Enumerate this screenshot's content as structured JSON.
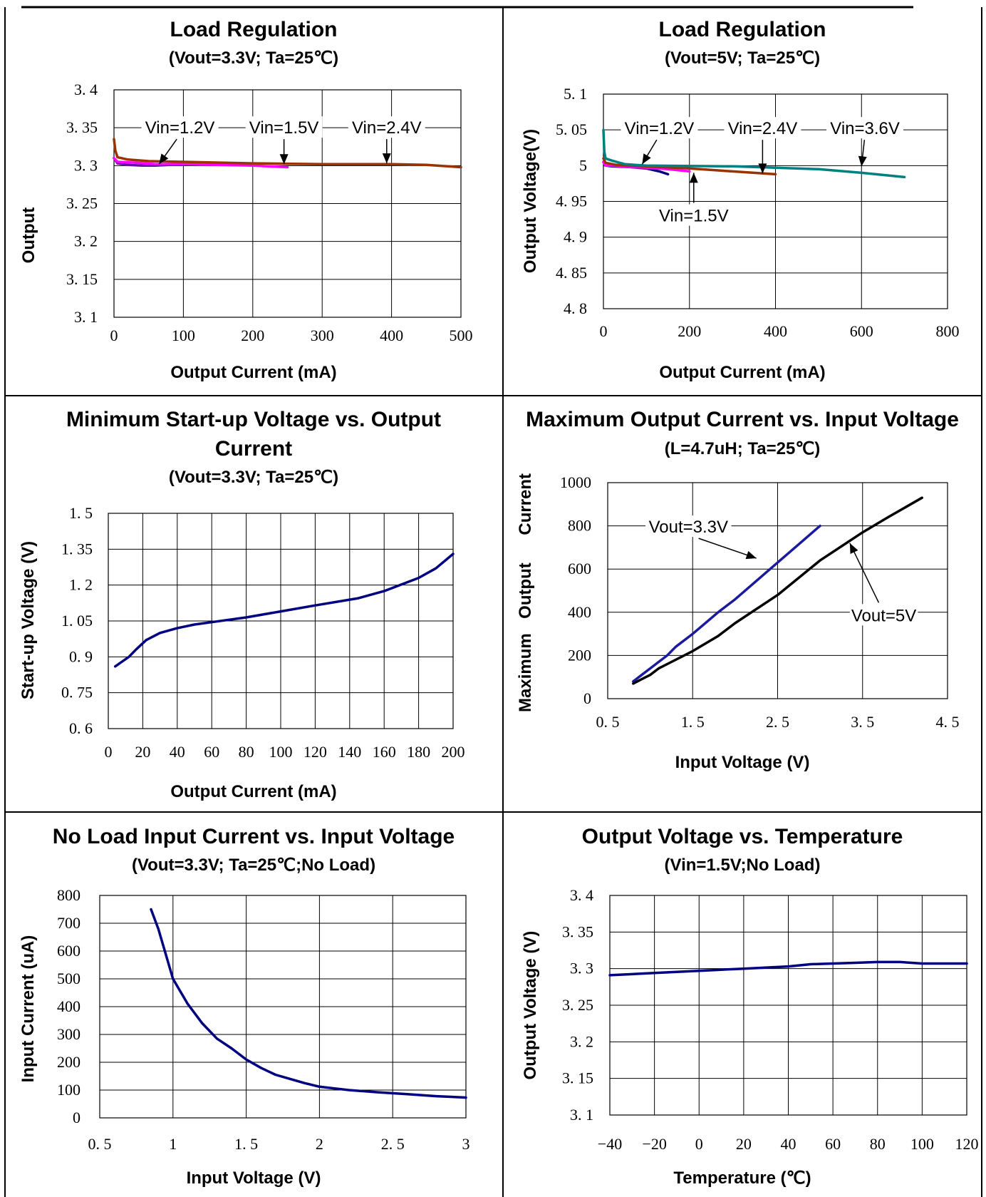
{
  "colors": {
    "navy": "#000080",
    "brown": "#993300",
    "magenta": "#ff00ff",
    "teal": "#008080",
    "black": "#000000",
    "blue": "#1a1a9c"
  },
  "chart_data": [
    {
      "type": "line",
      "title": "Load Regulation",
      "subtitle": "(Vout=3.3V; Ta=25℃)",
      "xlabel": "Output Current (mA)",
      "ylabel": "Output",
      "xlim": [
        0,
        500
      ],
      "ylim": [
        3.1,
        3.4
      ],
      "xticks": [
        "0",
        "100",
        "200",
        "300",
        "400",
        "500"
      ],
      "yticks": [
        "3. 4",
        "3. 35",
        "3. 3",
        "3. 25",
        "3. 2",
        "3. 15",
        "3. 1"
      ],
      "series": [
        {
          "name": "Vin=1.2V",
          "color": "#6a0dad",
          "x": [
            0,
            5,
            20,
            40,
            60,
            80,
            100
          ],
          "y": [
            3.31,
            3.303,
            3.301,
            3.3,
            3.3,
            3.301,
            3.301
          ]
        },
        {
          "name": "Vin=1.5V",
          "color": "#ff00ff",
          "x": [
            0,
            5,
            30,
            60,
            100,
            150,
            200,
            250
          ],
          "y": [
            3.31,
            3.305,
            3.304,
            3.302,
            3.302,
            3.301,
            3.3,
            3.298
          ]
        },
        {
          "name": "Vin=2.4V",
          "color": "#993300",
          "x": [
            0,
            2,
            5,
            20,
            50,
            100,
            200,
            300,
            400,
            450,
            500
          ],
          "y": [
            3.335,
            3.32,
            3.311,
            3.308,
            3.306,
            3.305,
            3.303,
            3.302,
            3.302,
            3.301,
            3.298
          ]
        }
      ],
      "annotations": [
        {
          "text": "Vin=1.2V",
          "x": 95,
          "y": 3.35,
          "ax": 65,
          "ay": 3.302
        },
        {
          "text": "Vin=1.5V",
          "x": 245,
          "y": 3.35,
          "ax": 245,
          "ay": 3.302
        },
        {
          "text": "Vin=2.4V",
          "x": 393,
          "y": 3.35,
          "ax": 393,
          "ay": 3.303
        }
      ]
    },
    {
      "type": "line",
      "title": "Load Regulation",
      "subtitle": "(Vout=5V; Ta=25℃)",
      "xlabel": "Output Current (mA)",
      "ylabel": "Output Voltage(V)",
      "xlim": [
        0,
        800
      ],
      "ylim": [
        4.8,
        5.1
      ],
      "xticks": [
        "0",
        "200",
        "400",
        "600",
        "800"
      ],
      "yticks": [
        "5. 1",
        "5. 05",
        "5",
        "4. 95",
        "4. 9",
        "4. 85",
        "4. 8"
      ],
      "series": [
        {
          "name": "Vin=1.2V",
          "color": "#000080",
          "x": [
            0,
            5,
            20,
            60,
            100,
            130,
            150
          ],
          "y": [
            5.005,
            5.0,
            4.999,
            4.998,
            4.996,
            4.992,
            4.988
          ]
        },
        {
          "name": "Vin=1.5V",
          "color": "#ff00ff",
          "x": [
            0,
            5,
            20,
            60,
            100,
            150,
            200
          ],
          "y": [
            5.005,
            5.0,
            5.0,
            4.998,
            4.997,
            4.995,
            4.992
          ]
        },
        {
          "name": "Vin=2.4V",
          "color": "#993300",
          "x": [
            0,
            5,
            30,
            100,
            200,
            300,
            400
          ],
          "y": [
            5.01,
            5.004,
            5.001,
            4.999,
            4.996,
            4.992,
            4.988
          ]
        },
        {
          "name": "Vin=3.6V",
          "color": "#008080",
          "x": [
            0,
            2,
            5,
            20,
            50,
            100,
            300,
            500,
            600,
            700
          ],
          "y": [
            5.05,
            5.02,
            5.01,
            5.007,
            5.002,
            5.0,
            4.999,
            4.995,
            4.99,
            4.984
          ]
        }
      ],
      "annotations": [
        {
          "text": "Vin=1.2V",
          "x": 130,
          "y": 5.052,
          "ax": 90,
          "ay": 5.002
        },
        {
          "text": "Vin=2.4V",
          "x": 370,
          "y": 5.052,
          "ax": 370,
          "ay": 4.989
        },
        {
          "text": "Vin=3.6V",
          "x": 608,
          "y": 5.052,
          "ax": 600,
          "ay": 4.999
        },
        {
          "text": "Vin=1.5V",
          "x": 210,
          "y": 4.93,
          "ax": 210,
          "ay": 4.99
        }
      ]
    },
    {
      "type": "line",
      "title": "Minimum Start-up Voltage vs. Output",
      "title2": "Current",
      "subtitle": "(Vout=3.3V; Ta=25℃)",
      "xlabel": "Output Current (mA)",
      "ylabel": "Start-up Voltage (V)",
      "xlim": [
        0,
        200
      ],
      "ylim": [
        0.6,
        1.5
      ],
      "xticks": [
        "0",
        "20",
        "40",
        "60",
        "80",
        "100",
        "120",
        "140",
        "160",
        "180",
        "200"
      ],
      "yticks": [
        "1. 5",
        "1. 35",
        "1. 2",
        "1. 05",
        "0. 9",
        "0. 75",
        "0. 6"
      ],
      "series": [
        {
          "name": "",
          "color": "#000080",
          "x": [
            4,
            8,
            12,
            16,
            22,
            30,
            40,
            50,
            60,
            70,
            80,
            100,
            120,
            145,
            160,
            180,
            190,
            200
          ],
          "y": [
            0.86,
            0.88,
            0.9,
            0.93,
            0.97,
            1.0,
            1.02,
            1.035,
            1.045,
            1.055,
            1.065,
            1.09,
            1.115,
            1.145,
            1.175,
            1.23,
            1.27,
            1.33
          ]
        }
      ]
    },
    {
      "type": "line",
      "title": "Maximum Output Current vs. Input Voltage",
      "subtitle": "(L=4.7uH; Ta=25℃)",
      "xlabel": "Input Voltage (V)",
      "ylabel_words": [
        "Maximum",
        "Output",
        "Current"
      ],
      "xlim": [
        0.5,
        4.5
      ],
      "ylim": [
        0,
        1000
      ],
      "xticks": [
        "0. 5",
        "1. 5",
        "2. 5",
        "3. 5",
        "4. 5"
      ],
      "yticks": [
        "1000",
        "800",
        "600",
        "400",
        "200",
        "0"
      ],
      "series": [
        {
          "name": "Vout=3.3V",
          "color": "#1a1a9c",
          "x": [
            0.8,
            0.9,
            1.0,
            1.1,
            1.2,
            1.3,
            1.5,
            1.8,
            2.0,
            2.5,
            3.0
          ],
          "y": [
            80,
            110,
            140,
            170,
            200,
            240,
            300,
            400,
            460,
            630,
            800
          ]
        },
        {
          "name": "Vout=5V",
          "color": "#000000",
          "x": [
            0.8,
            0.9,
            1.0,
            1.1,
            1.2,
            1.5,
            1.8,
            2.0,
            2.5,
            3.0,
            3.5,
            3.8,
            4.2
          ],
          "y": [
            70,
            90,
            110,
            140,
            160,
            220,
            290,
            350,
            480,
            640,
            770,
            840,
            930
          ]
        }
      ],
      "annotations": [
        {
          "text": "Vout=3.3V",
          "x": 1.45,
          "y": 795,
          "ax": 2.25,
          "ay": 650
        },
        {
          "text": "Vout=5V",
          "x": 3.75,
          "y": 385,
          "ax": 3.35,
          "ay": 720
        }
      ]
    },
    {
      "type": "line",
      "title": "No Load Input Current vs. Input Voltage",
      "subtitle": "(Vout=3.3V; Ta=25℃;No Load)",
      "xlabel": "Input Voltage (V)",
      "ylabel": "Input Current (uA)",
      "xlim": [
        0.5,
        3
      ],
      "ylim": [
        0,
        800
      ],
      "xticks": [
        "0. 5",
        "1",
        "1. 5",
        "2",
        "2. 5",
        "3"
      ],
      "yticks": [
        "800",
        "700",
        "600",
        "500",
        "400",
        "300",
        "200",
        "100",
        "0"
      ],
      "series": [
        {
          "name": "",
          "color": "#000080",
          "x": [
            0.85,
            0.9,
            0.95,
            1.0,
            1.1,
            1.2,
            1.3,
            1.4,
            1.5,
            1.6,
            1.7,
            1.8,
            1.9,
            2.0,
            2.2,
            2.4,
            2.6,
            2.8,
            3.0
          ],
          "y": [
            750,
            680,
            590,
            500,
            410,
            340,
            285,
            250,
            210,
            180,
            155,
            140,
            125,
            112,
            100,
            92,
            85,
            78,
            73
          ]
        }
      ]
    },
    {
      "type": "line",
      "title": "Output Voltage vs. Temperature",
      "subtitle": "(Vin=1.5V;No Load)",
      "xlabel": "Temperature (℃)",
      "ylabel": "Output Voltage (V)",
      "xlim": [
        -40,
        120
      ],
      "ylim": [
        3.1,
        3.4
      ],
      "xticks": [
        "−40",
        "−20",
        "0",
        "20",
        "40",
        "60",
        "80",
        "100",
        "120"
      ],
      "yticks": [
        "3. 4",
        "3. 35",
        "3. 3",
        "3. 25",
        "3. 2",
        "3. 15",
        "3. 1"
      ],
      "series": [
        {
          "name": "",
          "color": "#000080",
          "x": [
            -40,
            -20,
            0,
            20,
            40,
            50,
            60,
            70,
            80,
            90,
            100,
            110,
            120
          ],
          "y": [
            3.291,
            3.294,
            3.297,
            3.3,
            3.303,
            3.306,
            3.307,
            3.308,
            3.309,
            3.309,
            3.307,
            3.307,
            3.307
          ]
        }
      ]
    }
  ]
}
